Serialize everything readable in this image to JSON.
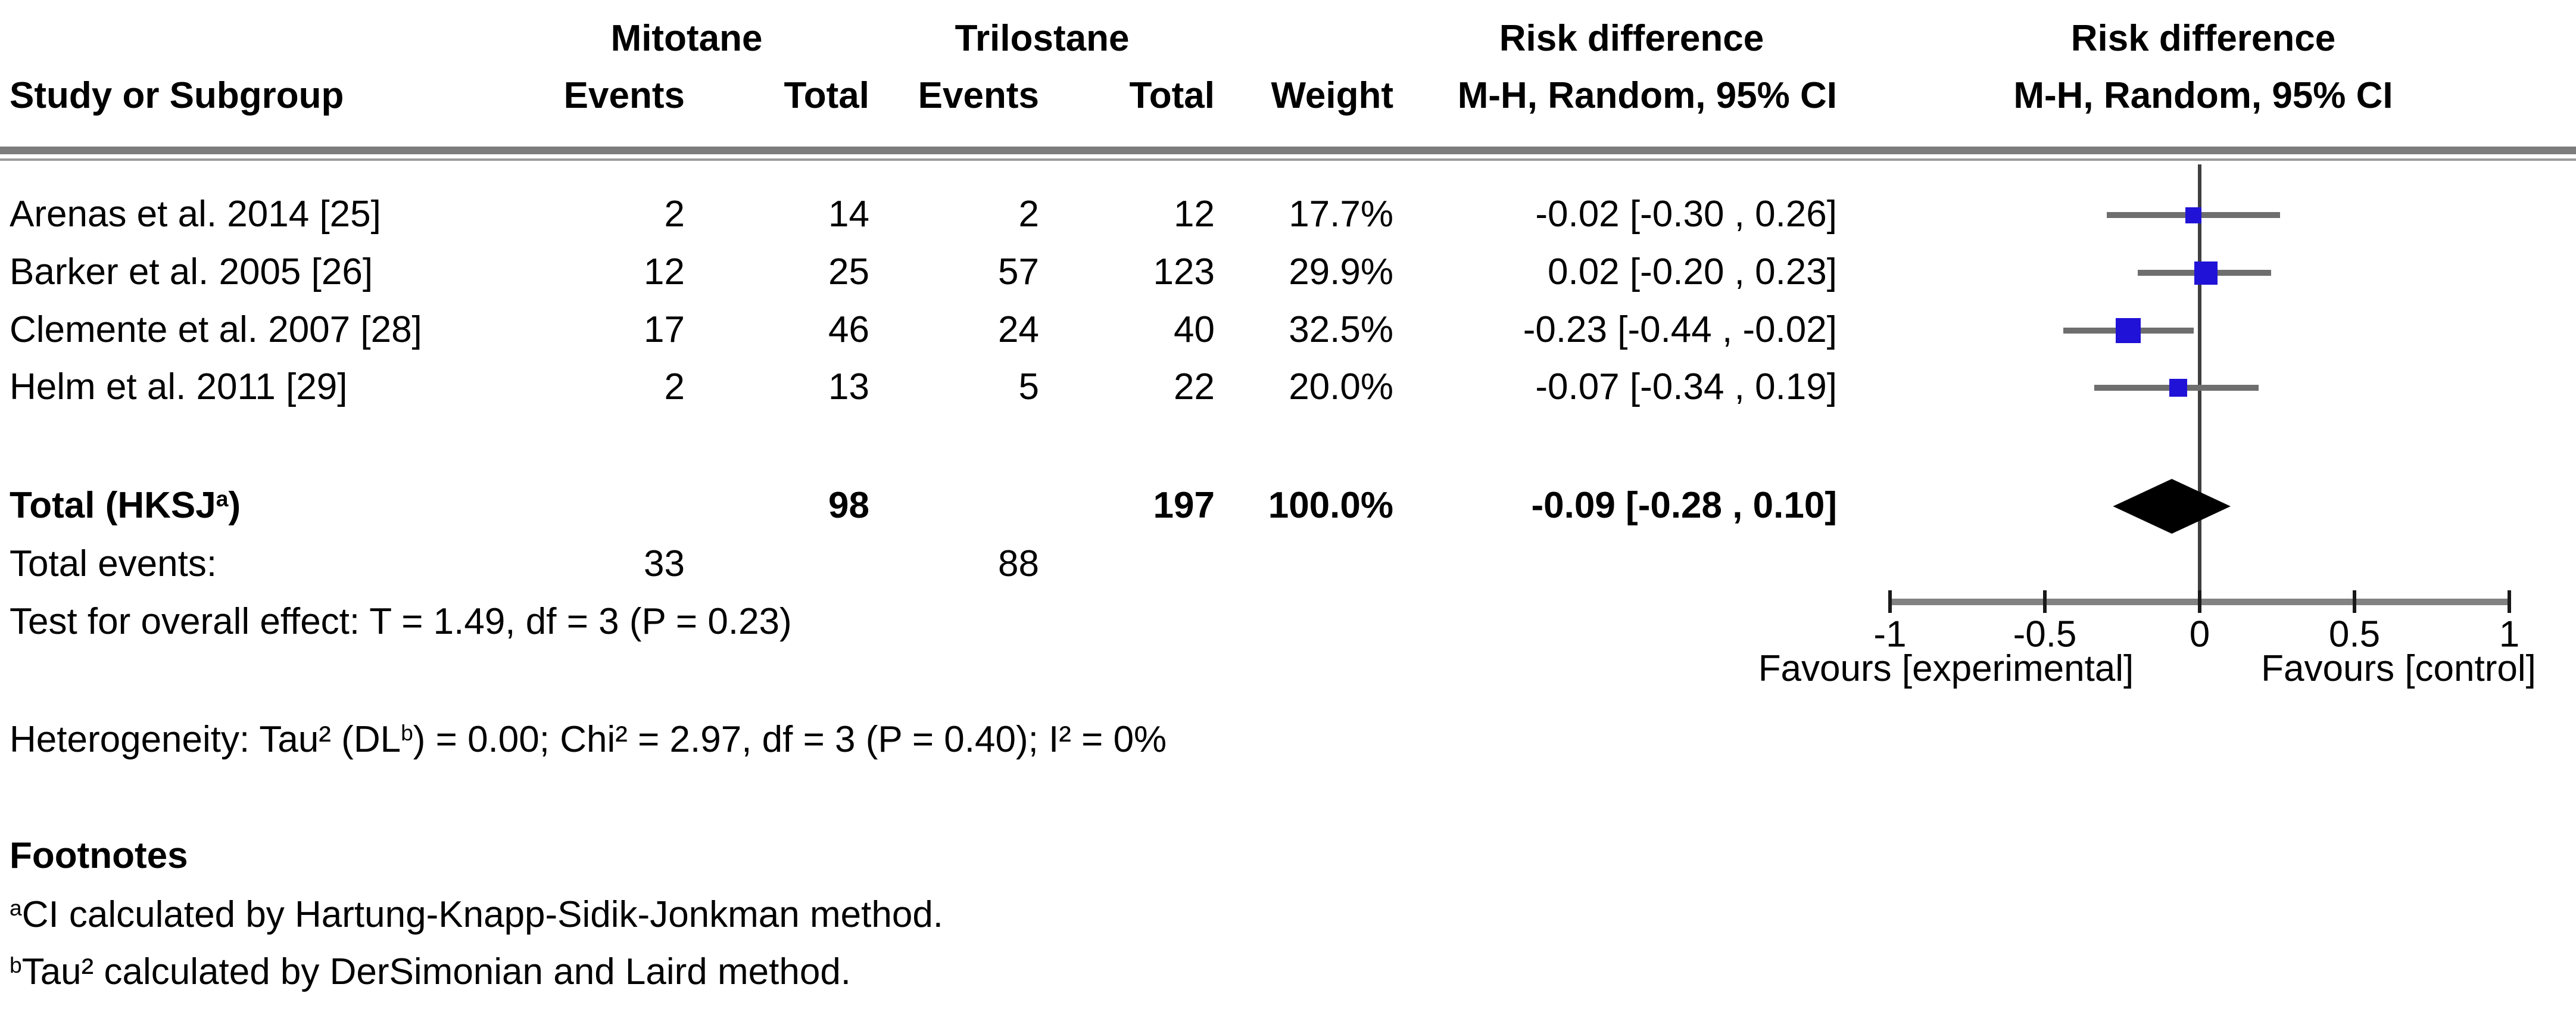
{
  "header": {
    "group_mitotane": "Mitotane",
    "group_trilostane": "Trilostane",
    "risk_difference": "Risk difference",
    "mh_ci": "M-H, Random, 95% CI",
    "study": "Study or Subgroup",
    "events": "Events",
    "total": "Total",
    "weight": "Weight"
  },
  "plot": {
    "title": "Risk difference",
    "subtitle": "M-H, Random, 95% CI",
    "favours_left": "Favours [experimental]",
    "favours_right": "Favours [control]"
  },
  "table": {
    "rows": [
      {
        "study": "Arenas et al. 2014 [25]",
        "e1": "2",
        "t1": "14",
        "e2": "2",
        "t2": "12",
        "weight": "17.7%",
        "ci": "-0.02 [-0.30 , 0.26]"
      },
      {
        "study": "Barker et al. 2005 [26]",
        "e1": "12",
        "t1": "25",
        "e2": "57",
        "t2": "123",
        "weight": "29.9%",
        "ci": "0.02 [-0.20 , 0.23]"
      },
      {
        "study": "Clemente et al. 2007 [28]",
        "e1": "17",
        "t1": "46",
        "e2": "24",
        "t2": "40",
        "weight": "32.5%",
        "ci": "-0.23 [-0.44 , -0.02]"
      },
      {
        "study": "Helm et al. 2011 [29]",
        "e1": "2",
        "t1": "13",
        "e2": "5",
        "t2": "22",
        "weight": "20.0%",
        "ci": "-0.07 [-0.34 , 0.19]"
      }
    ],
    "total": {
      "pre": "Total (HKSJ",
      "sup": "a",
      "post": ")",
      "t1": "98",
      "t2": "197",
      "weight": "100.0%",
      "ci": "-0.09 [-0.28 , 0.10]"
    },
    "total_events": {
      "label": "Total events:",
      "e1": "33",
      "e2": "88"
    },
    "overall_effect": "Test for overall effect: T = 1.49, df = 3 (P = 0.23)",
    "het_pre": "Heterogeneity: Tau² (DL",
    "het_sup": "b",
    "het_post": ") = 0.00; Chi² = 2.97, df = 3 (P = 0.40); I² = 0%"
  },
  "footnotes": {
    "heading": "Footnotes",
    "a_sup": "a",
    "a_text": "CI calculated by Hartung-Knapp-Sidik-Jonkman method.",
    "b_sup": "b",
    "b_text": "Tau² calculated by DerSimonian and Laird method."
  },
  "chart_data": {
    "type": "scatter",
    "subtype": "forest-plot",
    "title": "Risk difference",
    "xlabel": "Risk difference (M-H, Random, 95% CI)",
    "xlim": [
      -1,
      1
    ],
    "x_ticks": [
      -1,
      -0.5,
      0,
      0.5,
      1
    ],
    "x_tick_labels": [
      "-1",
      "-0.5",
      "0",
      "0.5",
      "1"
    ],
    "favours_left": "Favours [experimental]",
    "favours_right": "Favours [control]",
    "grid": false,
    "studies": [
      {
        "name": "Arenas et al. 2014 [25]",
        "estimate": -0.02,
        "ci_low": -0.3,
        "ci_high": 0.26,
        "weight_pct": 17.7
      },
      {
        "name": "Barker et al. 2005 [26]",
        "estimate": 0.02,
        "ci_low": -0.2,
        "ci_high": 0.23,
        "weight_pct": 29.9
      },
      {
        "name": "Clemente et al. 2007 [28]",
        "estimate": -0.23,
        "ci_low": -0.44,
        "ci_high": -0.02,
        "weight_pct": 32.5
      },
      {
        "name": "Helm et al. 2011 [29]",
        "estimate": -0.07,
        "ci_low": -0.34,
        "ci_high": 0.19,
        "weight_pct": 20.0
      }
    ],
    "overall": {
      "name": "Total (HKSJ)",
      "estimate": -0.09,
      "ci_low": -0.28,
      "ci_high": 0.1,
      "weight_pct": 100.0
    },
    "marker_color": "#2012d6",
    "summary_color": "#000000"
  }
}
